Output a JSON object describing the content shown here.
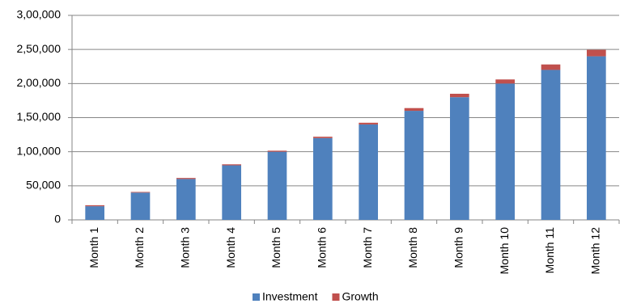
{
  "chart_data": {
    "type": "stacked-bar",
    "categories": [
      "Month 1",
      "Month 2",
      "Month 3",
      "Month 4",
      "Month 5",
      "Month 6",
      "Month 7",
      "Month 8",
      "Month 9",
      "Month 10",
      "Month 11",
      "Month 12"
    ],
    "series": [
      {
        "name": "Investment",
        "color": "#4f81bd",
        "values": [
          20000,
          40000,
          60000,
          80000,
          100000,
          120000,
          140000,
          160000,
          180000,
          200000,
          220000,
          240000
        ]
      },
      {
        "name": "Growth",
        "color": "#c0504d",
        "values": [
          1500,
          1000,
          1500,
          1500,
          1500,
          2000,
          2500,
          4000,
          5000,
          6000,
          8000,
          9500
        ]
      }
    ],
    "ylim": [
      0,
      300000
    ],
    "yticks": [
      0,
      {
        "value": 50000,
        "label": "50,000"
      },
      {
        "value": 100000,
        "label": "1,00,000"
      },
      {
        "value": 150000,
        "label": "1,50,000"
      },
      {
        "value": 200000,
        "label": "2,00,000"
      },
      {
        "value": 250000,
        "label": "2,50,000"
      },
      {
        "value": 300000,
        "label": "3,00,000"
      }
    ],
    "grid": true,
    "legend": "bottom"
  }
}
